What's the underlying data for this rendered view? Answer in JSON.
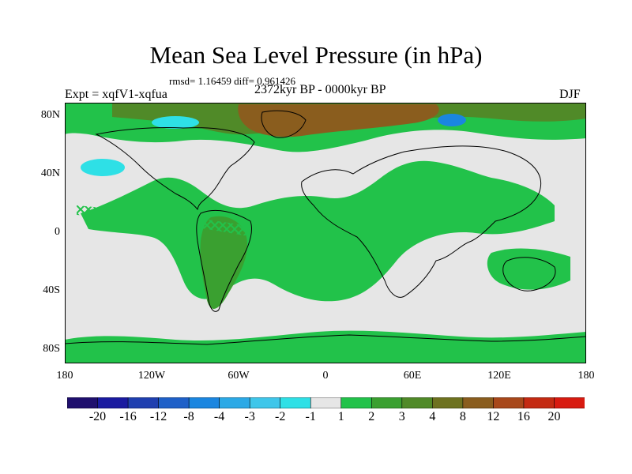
{
  "header": {
    "title": "Mean Sea Level Pressure (in hPa)",
    "stats": "rmsd= 1.16459 diff= 0.961426",
    "experiment": "Expt = xqfV1-xqfua",
    "period": "2372kyr BP - 0000kyr BP",
    "season": "DJF"
  },
  "axes": {
    "x_ticks": [
      "180",
      "120W",
      "60W",
      "0",
      "60E",
      "120E",
      "180"
    ],
    "y_ticks": [
      "80N",
      "40N",
      "0",
      "40S",
      "80S"
    ]
  },
  "colorbar": {
    "labels": [
      "-20",
      "-16",
      "-12",
      "-8",
      "-4",
      "-3",
      "-2",
      "-1",
      "1",
      "2",
      "3",
      "4",
      "8",
      "12",
      "16",
      "20"
    ],
    "colors": [
      "#1f0f6e",
      "#1a1aa0",
      "#1f3fb0",
      "#1e60c8",
      "#1a86e0",
      "#2ba9e6",
      "#3ec6ea",
      "#2ee0e6",
      "#e6e6e6",
      "#22c24a",
      "#3aa030",
      "#508a28",
      "#6e7220",
      "#8a5d1e",
      "#a8481a",
      "#c42a12",
      "#d81a10"
    ]
  },
  "map_colors": {
    "neutral": "#e6e6e6",
    "green_light": "#22c24a",
    "green_mid": "#3aa030",
    "olive": "#508a28",
    "brown": "#8a5d1e",
    "cyan": "#2ee0e6",
    "blue": "#1a86e0",
    "coast": "#000000"
  },
  "chart_data": {
    "type": "heatmap",
    "title": "Mean Sea Level Pressure (in hPa)",
    "x_range": [
      -180,
      180
    ],
    "y_range": [
      -90,
      90
    ],
    "x_ticks": [
      -180,
      -120,
      -60,
      0,
      60,
      120,
      180
    ],
    "y_ticks": [
      80,
      40,
      0,
      -40,
      -80
    ],
    "contour_levels": [
      -20,
      -16,
      -12,
      -8,
      -4,
      -3,
      -2,
      -1,
      1,
      2,
      3,
      4,
      8,
      12,
      16,
      20
    ],
    "regions": [
      {
        "lon": [
          -180,
          180
        ],
        "lat": [
          68,
          90
        ],
        "value": 2.5
      },
      {
        "lon": [
          -20,
          110
        ],
        "lat": [
          75,
          90
        ],
        "value": 5
      },
      {
        "lon": [
          -160,
          -140
        ],
        "lat": [
          38,
          46
        ],
        "value": -1.5
      },
      {
        "lon": [
          -100,
          -75
        ],
        "lat": [
          78,
          85
        ],
        "value": -3
      },
      {
        "lon": [
          95,
          115
        ],
        "lat": [
          78,
          86
        ],
        "value": -3
      },
      {
        "lon": [
          -60,
          60
        ],
        "lat": [
          -40,
          15
        ],
        "value": 1.5
      },
      {
        "lon": [
          -80,
          -50
        ],
        "lat": [
          -45,
          15
        ],
        "value": 2.5
      },
      {
        "lon": [
          -180,
          180
        ],
        "lat": [
          -90,
          -75
        ],
        "value": 1.5
      }
    ]
  }
}
